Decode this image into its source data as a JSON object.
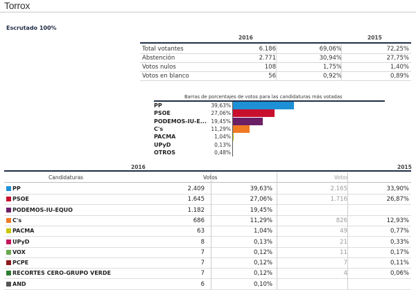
{
  "header": {
    "title": "Torrox"
  },
  "status": {
    "escrutado": "Escrutado 100%"
  },
  "summary": {
    "year_current": "2016",
    "year_previous": "2015",
    "rows": [
      {
        "label": "Total votantes",
        "value": "6.186",
        "pct": "69,06%",
        "pct_2015": "72,25%"
      },
      {
        "label": "Abstención",
        "value": "2.771",
        "pct": "30,94%",
        "pct_2015": "27,75%"
      },
      {
        "label": "Votos nulos",
        "value": "108",
        "pct": "1,75%",
        "pct_2015": "1,40%"
      },
      {
        "label": "Votos en blanco",
        "value": "56",
        "pct": "0,92%",
        "pct_2015": "0,89%"
      }
    ]
  },
  "chart_data": {
    "type": "bar",
    "title": "Barras de porcentajes de votos para las candidaturas más votadas",
    "categories": [
      "PP",
      "PSOE",
      "PODEMOS-IU-E...",
      "C's",
      "PACMA",
      "UPyD",
      "OTROS"
    ],
    "values": [
      39.63,
      27.06,
      19.45,
      11.29,
      1.04,
      0.13,
      0.48
    ],
    "labels": [
      "39,63%",
      "27,06%",
      "19,45%",
      "11,29%",
      "1,04%",
      "0,13%",
      "0,48%"
    ],
    "colors": [
      "#1e90d6",
      "#c8102e",
      "#6b2066",
      "#f07a24",
      "#c8c800",
      "#c2185b",
      "#888888"
    ],
    "xlim": [
      0,
      100
    ]
  },
  "results": {
    "year_current": "2016",
    "year_previous": "2015",
    "headers": {
      "candidaturas": "Candidaturas",
      "votos": "Votos",
      "votos_2015": "Votos"
    },
    "rows": [
      {
        "name": "PP",
        "color": "#1e90d6",
        "votes": "2.409",
        "pct": "39,63%",
        "votes_2015": "2.165",
        "pct_2015": "33,90%"
      },
      {
        "name": "PSOE",
        "color": "#c8102e",
        "votes": "1.645",
        "pct": "27,06%",
        "votes_2015": "1.716",
        "pct_2015": "26,87%"
      },
      {
        "name": "PODEMOS-IU-EQUO",
        "color": "#6b2066",
        "votes": "1.182",
        "pct": "19,45%",
        "votes_2015": "",
        "pct_2015": ""
      },
      {
        "name": "C's",
        "color": "#f07a24",
        "votes": "686",
        "pct": "11,29%",
        "votes_2015": "826",
        "pct_2015": "12,93%"
      },
      {
        "name": "PACMA",
        "color": "#c8c800",
        "votes": "63",
        "pct": "1,04%",
        "votes_2015": "49",
        "pct_2015": "0,77%"
      },
      {
        "name": "UPyD",
        "color": "#c2185b",
        "votes": "8",
        "pct": "0,13%",
        "votes_2015": "21",
        "pct_2015": "0,33%"
      },
      {
        "name": "VOX",
        "color": "#6aa84f",
        "votes": "7",
        "pct": "0,12%",
        "votes_2015": "11",
        "pct_2015": "0,17%"
      },
      {
        "name": "PCPE",
        "color": "#8b1a1a",
        "votes": "7",
        "pct": "0,12%",
        "votes_2015": "7",
        "pct_2015": "0,11%"
      },
      {
        "name": "RECORTES CERO-GRUPO VERDE",
        "color": "#2e7d32",
        "votes": "7",
        "pct": "0,12%",
        "votes_2015": "4",
        "pct_2015": "0,06%"
      },
      {
        "name": "AND",
        "color": "#555555",
        "votes": "6",
        "pct": "0,10%",
        "votes_2015": "",
        "pct_2015": ""
      }
    ]
  }
}
